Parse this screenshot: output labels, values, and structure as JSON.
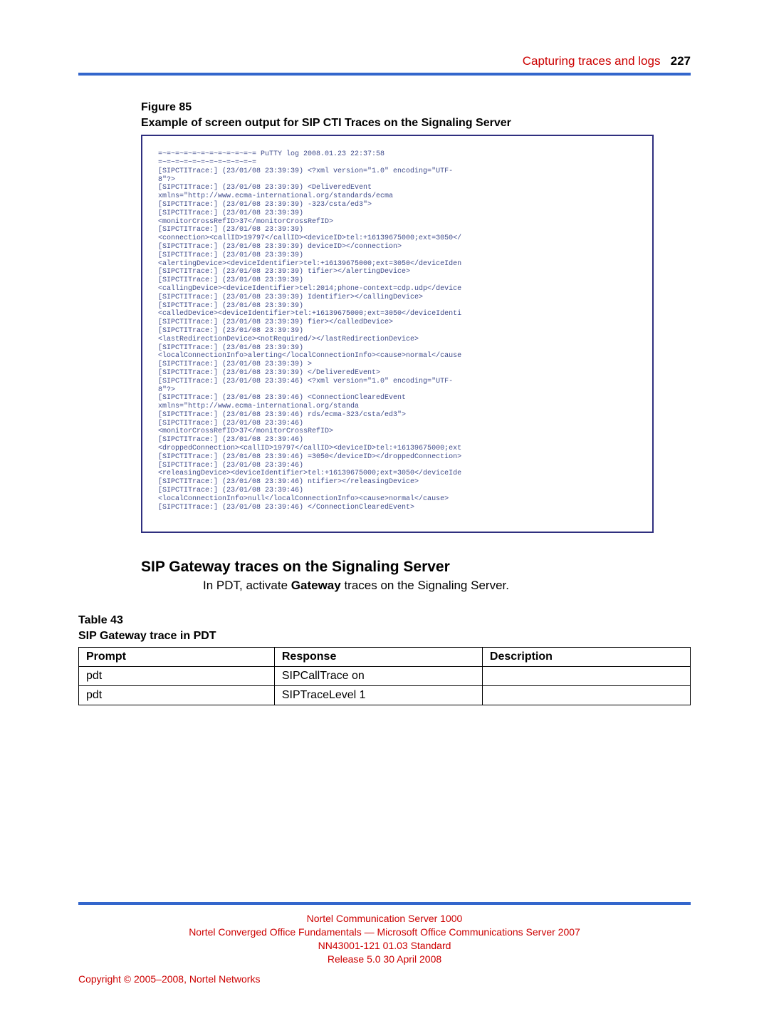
{
  "header": {
    "section_title": "Capturing traces and logs",
    "page_number": "227"
  },
  "figure": {
    "label": "Figure 85",
    "title": "Example of screen output for SIP CTI Traces on the Signaling Server",
    "terminal_style": {
      "font_family": "Courier New",
      "font_size_pt": 8,
      "text_color": "#3e4a8a",
      "border_color": "#2f2f7f",
      "background_color": "#ffffff"
    },
    "terminal_lines": [
      "=~=~=~=~=~=~=~=~=~=~=~= PuTTY log 2008.01.23 22:37:58",
      "=~=~=~=~=~=~=~=~=~=~=~=",
      "[SIPCTITrace:] (23/01/08 23:39:39) <?xml version=\"1.0\" encoding=\"UTF-",
      "8\"?>",
      "[SIPCTITrace:] (23/01/08 23:39:39) <DeliveredEvent",
      "xmlns=\"http://www.ecma-international.org/standards/ecma",
      "[SIPCTITrace:] (23/01/08 23:39:39) -323/csta/ed3\">",
      "[SIPCTITrace:] (23/01/08 23:39:39)",
      "<monitorCrossRefID>37</monitorCrossRefID>",
      "[SIPCTITrace:] (23/01/08 23:39:39)",
      "<connection><callID>19797</callID><deviceID>tel:+16139675000;ext=3050</",
      "[SIPCTITrace:] (23/01/08 23:39:39) deviceID></connection>",
      "[SIPCTITrace:] (23/01/08 23:39:39)",
      "<alertingDevice><deviceIdentifier>tel:+16139675000;ext=3050</deviceIden",
      "[SIPCTITrace:] (23/01/08 23:39:39) tifier></alertingDevice>",
      "[SIPCTITrace:] (23/01/08 23:39:39)",
      "<callingDevice><deviceIdentifier>tel:2014;phone-context=cdp.udp</device",
      "[SIPCTITrace:] (23/01/08 23:39:39) Identifier></callingDevice>",
      "[SIPCTITrace:] (23/01/08 23:39:39)",
      "<calledDevice><deviceIdentifier>tel:+16139675000;ext=3050</deviceIdenti",
      "[SIPCTITrace:] (23/01/08 23:39:39) fier></calledDevice>",
      "[SIPCTITrace:] (23/01/08 23:39:39)",
      "<lastRedirectionDevice><notRequired/></lastRedirectionDevice>",
      "[SIPCTITrace:] (23/01/08 23:39:39)",
      "<localConnectionInfo>alerting</localConnectionInfo><cause>normal</cause",
      "[SIPCTITrace:] (23/01/08 23:39:39) >",
      "[SIPCTITrace:] (23/01/08 23:39:39) </DeliveredEvent>",
      "[SIPCTITrace:] (23/01/08 23:39:46) <?xml version=\"1.0\" encoding=\"UTF-",
      "8\"?>",
      "[SIPCTITrace:] (23/01/08 23:39:46) <ConnectionClearedEvent",
      "xmlns=\"http://www.ecma-international.org/standa",
      "[SIPCTITrace:] (23/01/08 23:39:46) rds/ecma-323/csta/ed3\">",
      "[SIPCTITrace:] (23/01/08 23:39:46)",
      "<monitorCrossRefID>37</monitorCrossRefID>",
      "[SIPCTITrace:] (23/01/08 23:39:46)",
      "<droppedConnection><callID>19797</callID><deviceID>tel:+16139675000;ext",
      "[SIPCTITrace:] (23/01/08 23:39:46) =3050</deviceID></droppedConnection>",
      "[SIPCTITrace:] (23/01/08 23:39:46)",
      "<releasingDevice><deviceIdentifier>tel:+16139675000;ext=3050</deviceIde",
      "[SIPCTITrace:] (23/01/08 23:39:46) ntifier></releasingDevice>",
      "[SIPCTITrace:] (23/01/08 23:39:46)",
      "<localConnectionInfo>null</localConnectionInfo><cause>normal</cause>",
      "[SIPCTITrace:] (23/01/08 23:39:46) </ConnectionClearedEvent>"
    ]
  },
  "section": {
    "heading": "SIP Gateway traces on the Signaling Server",
    "paragraph_pre": "In PDT, activate ",
    "paragraph_bold": "Gateway",
    "paragraph_post": " traces on the Signaling Server."
  },
  "table": {
    "label": "Table 43",
    "title": "SIP Gateway trace in PDT",
    "columns": [
      "Prompt",
      "Response",
      "Description"
    ],
    "rows": [
      [
        "pdt",
        "SIPCallTrace on",
        ""
      ],
      [
        "pdt",
        "SIPTraceLevel 1",
        ""
      ]
    ]
  },
  "footer": {
    "line1": "Nortel Communication Server 1000",
    "line2": "Nortel Converged Office Fundamentals — Microsoft Office Communications Server 2007",
    "line3": "NN43001-121   01.03   Standard",
    "line4": "Release 5.0   30 April 2008",
    "copyright": "Copyright © 2005–2008, Nortel Networks"
  },
  "colors": {
    "accent_blue": "#3366cc",
    "accent_red": "#cc0000"
  }
}
